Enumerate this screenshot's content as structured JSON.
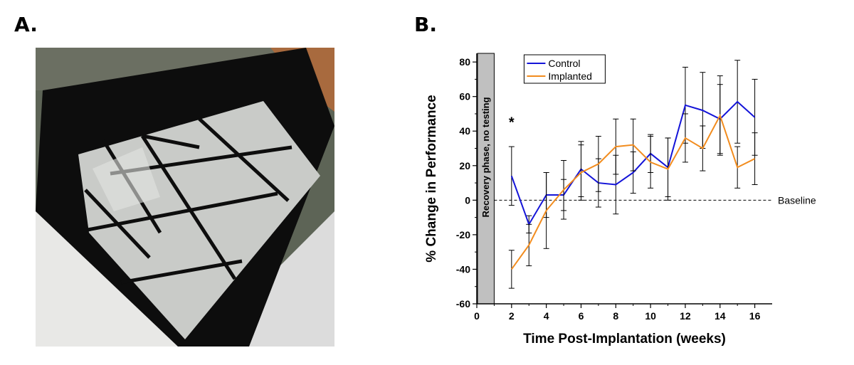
{
  "panels": {
    "a_label": "A.",
    "b_label": "B."
  },
  "photo": {
    "description_icon": "open-field-arena-photo"
  },
  "chart_data": {
    "type": "line",
    "x": [
      2,
      3,
      4,
      5,
      6,
      7,
      8,
      9,
      10,
      11,
      12,
      13,
      14,
      15,
      16
    ],
    "series": [
      {
        "name": "Control",
        "color": "#1414d8",
        "values": [
          14,
          -14,
          3,
          3,
          18,
          10,
          9,
          16,
          27,
          19,
          55,
          52,
          47,
          57,
          48
        ],
        "errors": [
          17,
          5,
          13,
          9,
          16,
          14,
          17,
          12,
          11,
          17,
          22,
          22,
          20,
          24,
          22
        ]
      },
      {
        "name": "Implanted",
        "color": "#f28c1e",
        "values": [
          -40,
          -26,
          -6,
          6,
          16,
          21,
          31,
          32,
          22,
          18,
          36,
          30,
          49,
          19,
          24
        ],
        "errors": [
          11,
          12,
          22,
          17,
          16,
          16,
          16,
          15,
          15,
          18,
          14,
          13,
          23,
          12,
          15
        ]
      }
    ],
    "xlabel": "Time Post-Implantation (weeks)",
    "ylabel": "% Change in Performance",
    "xlim": [
      0,
      17
    ],
    "ylim": [
      -60,
      85
    ],
    "xticks": [
      0,
      2,
      4,
      6,
      8,
      10,
      12,
      14,
      16
    ],
    "yticks": [
      -60,
      -40,
      -20,
      0,
      20,
      40,
      60,
      80
    ],
    "baseline": {
      "y": 0,
      "label": "Baseline"
    },
    "shaded_region": {
      "x0": 0,
      "x1": 1,
      "label": "Recovery phase, no testing"
    },
    "annotation": {
      "text": "*",
      "x": 2,
      "y": 44
    },
    "legend_position": "top-left"
  }
}
